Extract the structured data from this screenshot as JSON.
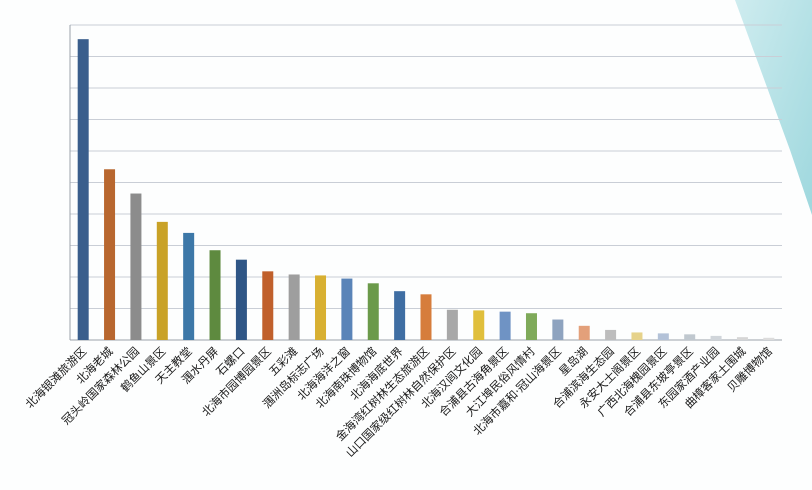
{
  "chart_data": {
    "type": "bar",
    "title": "",
    "xlabel": "",
    "ylabel": "",
    "ylim": [
      0,
      100
    ],
    "grid": true,
    "legend": "none",
    "categories": [
      "北海银滩旅游区",
      "北海老城",
      "冠头岭国家森林公园",
      "鹤鱼山景区",
      "天主教堂",
      "涠水丹屏",
      "石螺口",
      "北海市园博园景区",
      "五彩滩",
      "涠洲岛标志广场",
      "北海海洋之窗",
      "北海南珠博物馆",
      "北海海底世界",
      "金海湾红树林生态旅游区",
      "山口国家级红树林自然保护区",
      "北海汉闾文化园",
      "合浦县古海角景区",
      "大江埠民俗风情村",
      "北海市嘉和·冠山海景区",
      "星岛湖",
      "合浦滨海生态园",
      "永安大士阁景区",
      "广西北海槐园景区",
      "合浦县东坡亭景区",
      "东园家酒产业园",
      "曲樟客家土围城",
      "贝雕博物馆"
    ],
    "values": [
      95.5,
      54.2,
      46.5,
      37.5,
      34.0,
      28.5,
      25.5,
      21.8,
      20.8,
      20.5,
      19.5,
      18.0,
      15.5,
      14.5,
      9.6,
      9.4,
      9.0,
      8.5,
      6.5,
      4.5,
      3.2,
      2.4,
      2.1,
      1.8,
      1.3,
      0.9,
      0.7
    ],
    "colors": [
      "#3a5e8c",
      "#b8672f",
      "#8c8c8c",
      "#c9a227",
      "#3d78a8",
      "#5e8a3f",
      "#2f5686",
      "#c0602c",
      "#9e9e9e",
      "#d8b032",
      "#5a84b8",
      "#6b9a4a",
      "#3f6ea3",
      "#d67d3c",
      "#a8a8a8",
      "#e0bf3c",
      "#6f93c4",
      "#7faa5a",
      "#8ea3bf",
      "#e3a07a",
      "#bdbdbd",
      "#e6d28a",
      "#b3c2d8",
      "#c0c8cf",
      "#d0d5da",
      "#d6d6d6",
      "#dcdcdc"
    ]
  }
}
